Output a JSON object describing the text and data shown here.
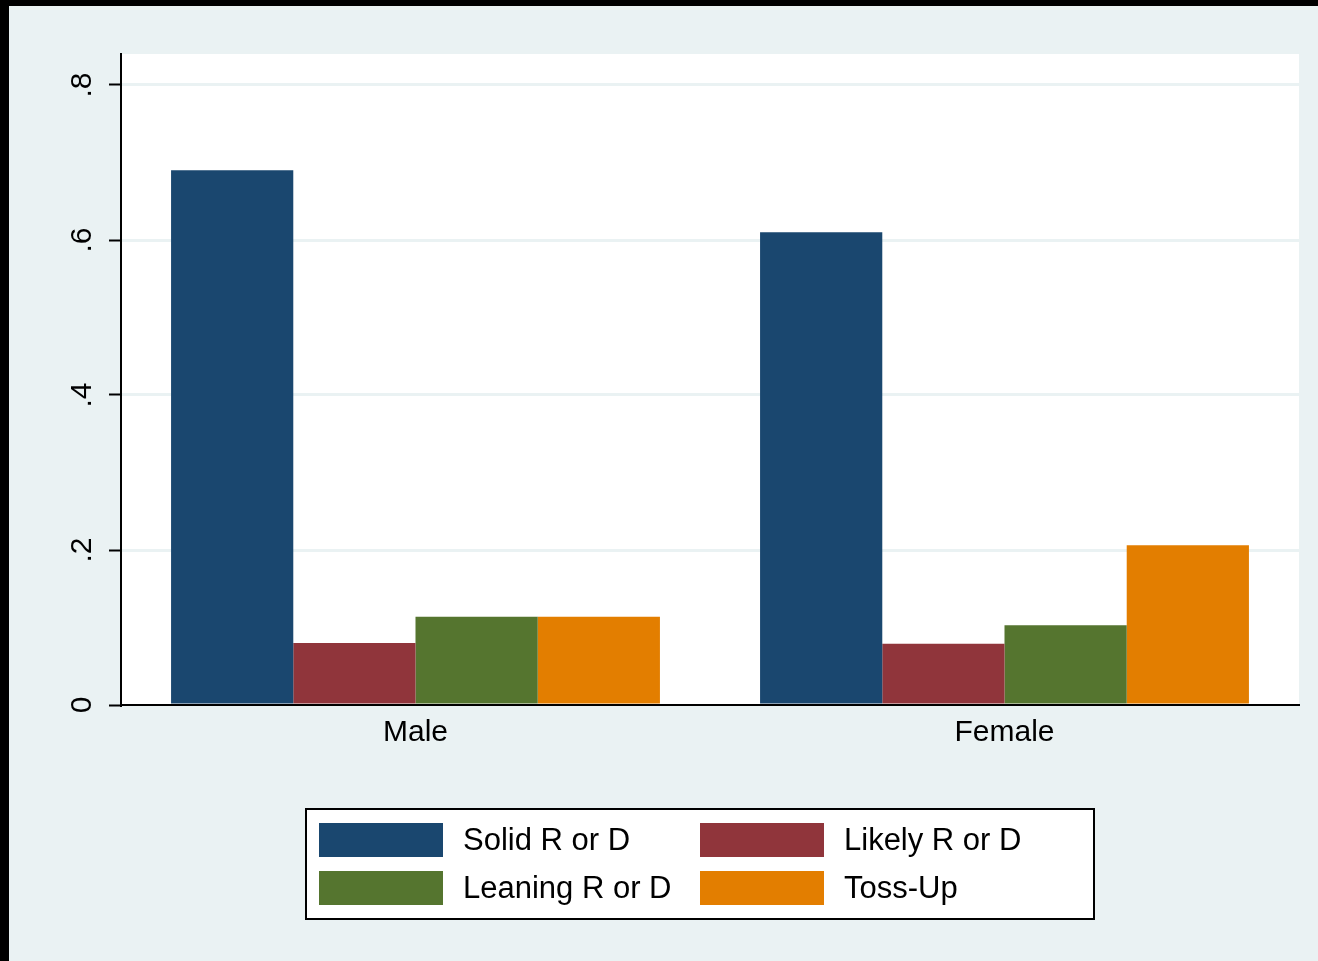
{
  "chart_data": {
    "type": "bar",
    "categories": [
      "Male",
      "Female"
    ],
    "series": [
      {
        "name": "Solid R or D",
        "color": "#1a476f",
        "values": [
          0.69,
          0.61
        ]
      },
      {
        "name": "Likely R or D",
        "color": "#90353b",
        "values": [
          0.08,
          0.079
        ]
      },
      {
        "name": "Leaning R or D",
        "color": "#55752f",
        "values": [
          0.114,
          0.103
        ]
      },
      {
        "name": "Toss-Up",
        "color": "#e37e00",
        "values": [
          0.114,
          0.206
        ]
      }
    ],
    "ylim": [
      0,
      0.84
    ],
    "yticks": [
      0,
      {
        "value": 0.2,
        "label": ".2"
      },
      {
        "value": 0.4,
        "label": ".4"
      },
      {
        "value": 0.6,
        "label": ".6"
      },
      {
        "value": 0.8,
        "label": ".8"
      }
    ],
    "grid": "y",
    "legend": "bottom"
  }
}
